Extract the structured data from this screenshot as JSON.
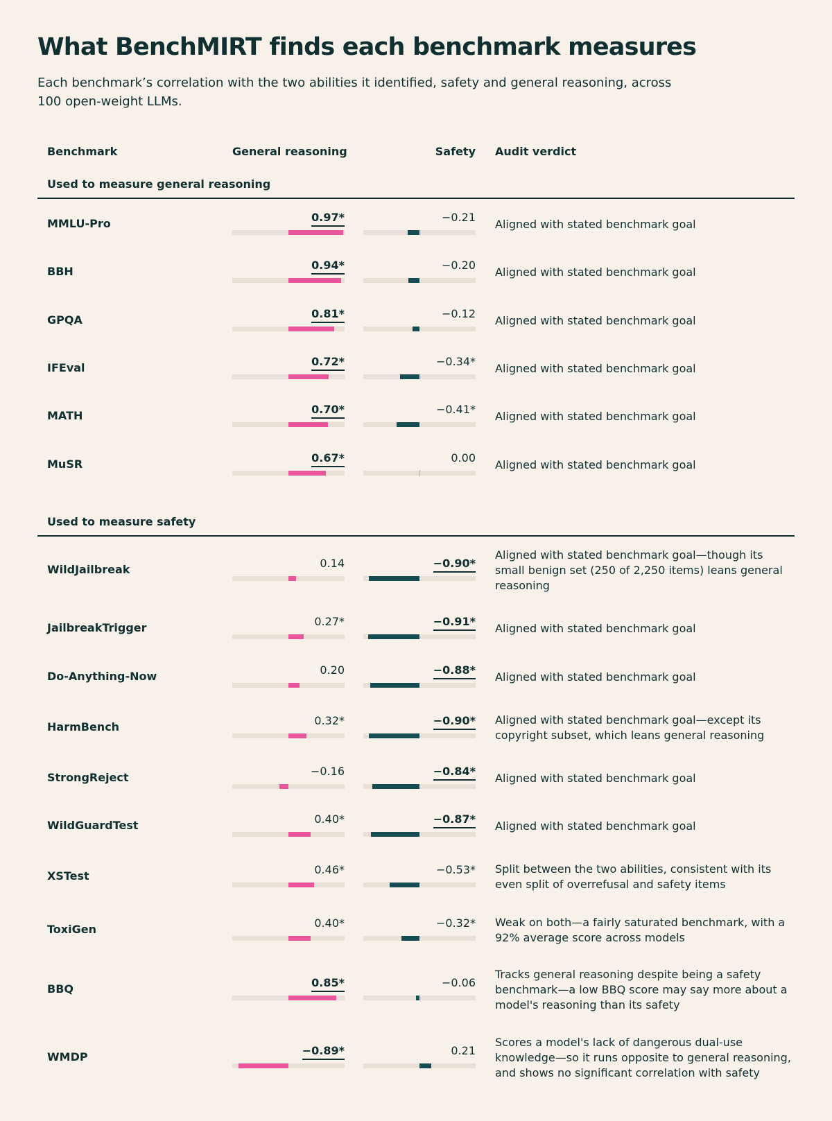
{
  "title": "What BenchMIRT finds each benchmark measures",
  "subtitle": "Each benchmark’s correlation with the two abilities it identified, safety and general reasoning, across 100 open-weight LLMs.",
  "columns": {
    "benchmark": "Benchmark",
    "general_reasoning": "General reasoning",
    "safety": "Safety",
    "verdict": "Audit verdict"
  },
  "colors": {
    "general_reasoning": "#e8559a",
    "safety": "#154d52",
    "background": "#f8f1e9",
    "text": "#0f2f31"
  },
  "chart_data": {
    "type": "bar",
    "title": "What BenchMIRT finds each benchmark measures",
    "series_names": [
      "General reasoning",
      "Safety"
    ],
    "xlim": [
      -1,
      1
    ],
    "sections": [
      {
        "title": "Used to measure general reasoning",
        "rows": [
          {
            "name": "MMLU-Pro",
            "gr": 0.97,
            "gr_label": "0.97*",
            "gr_sig": true,
            "sf": -0.21,
            "sf_label": "−0.21",
            "sf_sig": false,
            "verdict": "Aligned with stated benchmark goal"
          },
          {
            "name": "BBH",
            "gr": 0.94,
            "gr_label": "0.94*",
            "gr_sig": true,
            "sf": -0.2,
            "sf_label": "−0.20",
            "sf_sig": false,
            "verdict": "Aligned with stated benchmark goal"
          },
          {
            "name": "GPQA",
            "gr": 0.81,
            "gr_label": "0.81*",
            "gr_sig": true,
            "sf": -0.12,
            "sf_label": "−0.12",
            "sf_sig": false,
            "verdict": "Aligned with stated benchmark goal"
          },
          {
            "name": "IFEval",
            "gr": 0.72,
            "gr_label": "0.72*",
            "gr_sig": true,
            "sf": -0.34,
            "sf_label": "−0.34*",
            "sf_sig": false,
            "verdict": "Aligned with stated benchmark goal"
          },
          {
            "name": "MATH",
            "gr": 0.7,
            "gr_label": "0.70*",
            "gr_sig": true,
            "sf": -0.41,
            "sf_label": "−0.41*",
            "sf_sig": false,
            "verdict": "Aligned with stated benchmark goal"
          },
          {
            "name": "MuSR",
            "gr": 0.67,
            "gr_label": "0.67*",
            "gr_sig": true,
            "sf": 0.0,
            "sf_label": "0.00",
            "sf_sig": false,
            "verdict": "Aligned with stated benchmark goal"
          }
        ]
      },
      {
        "title": "Used to measure safety",
        "rows": [
          {
            "name": "WildJailbreak",
            "gr": 0.14,
            "gr_label": "0.14",
            "gr_sig": false,
            "sf": -0.9,
            "sf_label": "−0.90*",
            "sf_sig": true,
            "verdict": "Aligned with stated benchmark goal—though its small benign set (250 of 2,250 items) leans general reasoning"
          },
          {
            "name": "JailbreakTrigger",
            "gr": 0.27,
            "gr_label": "0.27*",
            "gr_sig": false,
            "sf": -0.91,
            "sf_label": "−0.91*",
            "sf_sig": true,
            "verdict": "Aligned with stated benchmark goal"
          },
          {
            "name": "Do-Anything-Now",
            "gr": 0.2,
            "gr_label": "0.20",
            "gr_sig": false,
            "sf": -0.88,
            "sf_label": "−0.88*",
            "sf_sig": true,
            "verdict": "Aligned with stated benchmark goal"
          },
          {
            "name": "HarmBench",
            "gr": 0.32,
            "gr_label": "0.32*",
            "gr_sig": false,
            "sf": -0.9,
            "sf_label": "−0.90*",
            "sf_sig": true,
            "verdict": "Aligned with stated benchmark goal—except its copyright subset, which leans general reasoning"
          },
          {
            "name": "StrongReject",
            "gr": -0.16,
            "gr_label": "−0.16",
            "gr_sig": false,
            "sf": -0.84,
            "sf_label": "−0.84*",
            "sf_sig": true,
            "verdict": "Aligned with stated benchmark goal"
          },
          {
            "name": "WildGuardTest",
            "gr": 0.4,
            "gr_label": "0.40*",
            "gr_sig": false,
            "sf": -0.87,
            "sf_label": "−0.87*",
            "sf_sig": true,
            "verdict": "Aligned with stated benchmark goal"
          },
          {
            "name": "XSTest",
            "gr": 0.46,
            "gr_label": "0.46*",
            "gr_sig": false,
            "sf": -0.53,
            "sf_label": "−0.53*",
            "sf_sig": false,
            "verdict": "Split between the two abilities, consistent with its even split of overrefusal and safety items"
          },
          {
            "name": "ToxiGen",
            "gr": 0.4,
            "gr_label": "0.40*",
            "gr_sig": false,
            "sf": -0.32,
            "sf_label": "−0.32*",
            "sf_sig": false,
            "verdict": "Weak on both—a fairly saturated benchmark, with a 92% average score across models"
          },
          {
            "name": "BBQ",
            "gr": 0.85,
            "gr_label": "0.85*",
            "gr_sig": true,
            "sf": -0.06,
            "sf_label": "−0.06",
            "sf_sig": false,
            "verdict": "Tracks general reasoning despite being a safety benchmark—a low BBQ score may say more about a model's reasoning than its safety"
          },
          {
            "name": "WMDP",
            "gr": -0.89,
            "gr_label": "−0.89*",
            "gr_sig": true,
            "sf": 0.21,
            "sf_label": "0.21",
            "sf_sig": false,
            "verdict": "Scores a model's lack of dangerous dual-use knowledge—so it runs opposite to general reasoning, and shows no significant correlation with safety"
          }
        ]
      }
    ]
  }
}
